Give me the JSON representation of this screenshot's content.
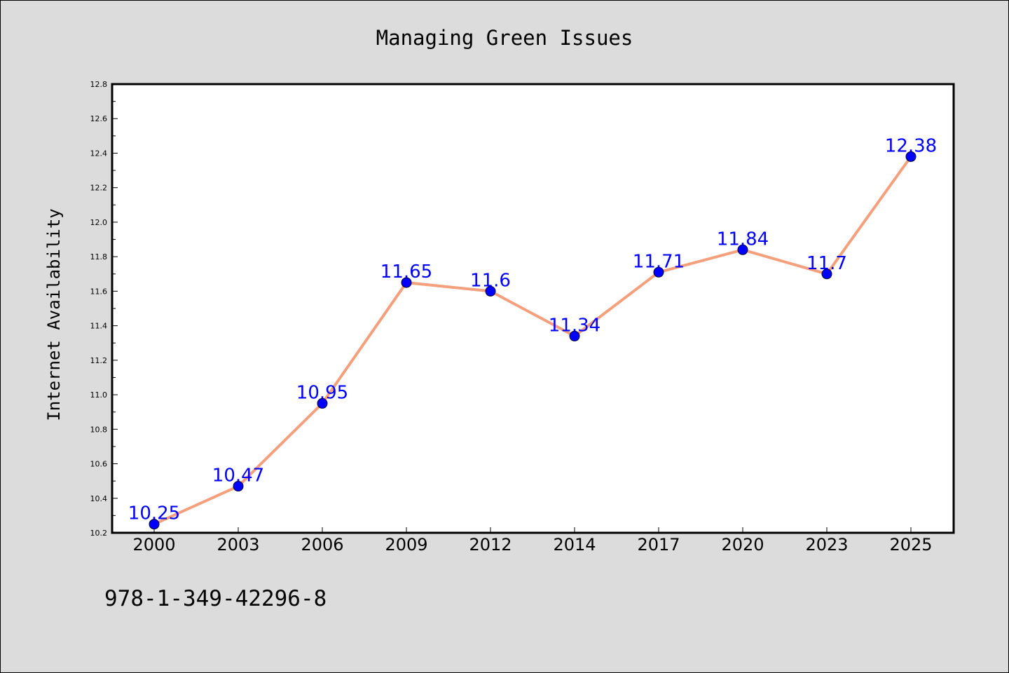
{
  "chart_data": {
    "type": "line",
    "title": "Managing Green Issues",
    "xlabel": "",
    "ylabel": "Internet Availability",
    "categories": [
      "2000",
      "2003",
      "2006",
      "2009",
      "2012",
      "2014",
      "2017",
      "2020",
      "2023",
      "2025"
    ],
    "series": [
      {
        "values": [
          10.25,
          10.47,
          10.95,
          11.65,
          11.6,
          11.34,
          11.71,
          11.84,
          11.7,
          12.38
        ],
        "data_labels": [
          "10.25",
          "10.47",
          "10.95",
          "11.65",
          "11.6",
          "11.34",
          "11.71",
          "11.84",
          "11.7",
          "12.38"
        ]
      }
    ],
    "ylim": [
      10.2,
      12.8
    ],
    "yticks": [
      "10.2",
      "10.4",
      "10.6",
      "10.8",
      "11.0",
      "11.2",
      "11.4",
      "11.6",
      "11.8",
      "12.0",
      "12.2",
      "12.4",
      "12.6",
      "12.8"
    ],
    "grid": false,
    "legend": "none",
    "colors": {
      "line": "#f4a07c",
      "marker": "#0000ff",
      "data_label": "#0000ff",
      "plot_background": "#ffffff",
      "figure_background": "#dcdcdc"
    }
  },
  "footnote": "978-1-349-42296-8"
}
